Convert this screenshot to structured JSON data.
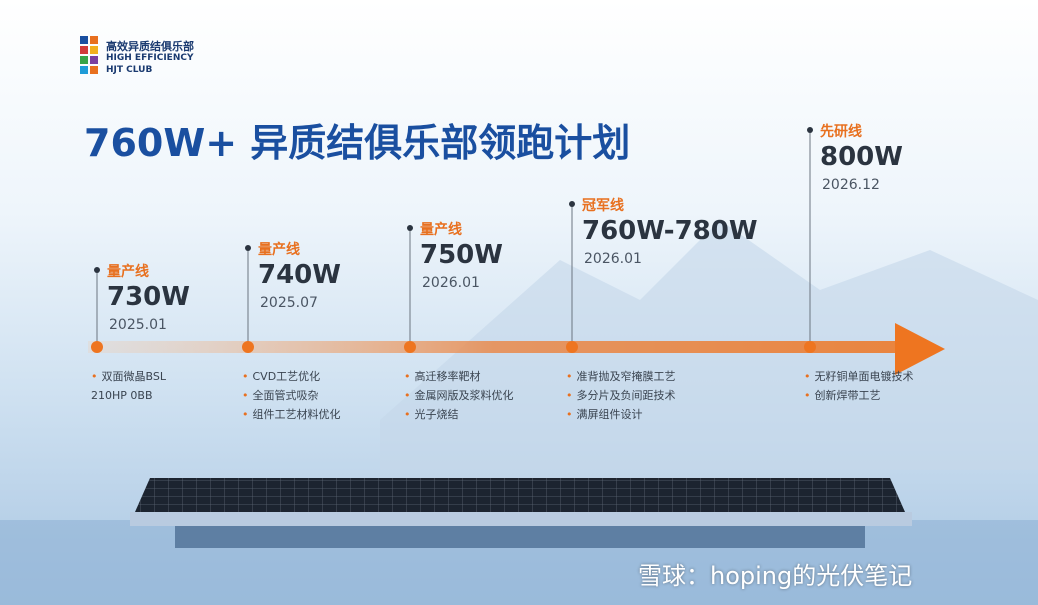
{
  "logo": {
    "name": "高效异质结俱乐部",
    "line1": "HIGH EFFICIENCY",
    "line2": "HJT CLUB"
  },
  "title": "760W+ 异质结俱乐部领跑计划",
  "milestones": [
    {
      "stage": "量产线",
      "power": "730W",
      "date": "2025.01",
      "bullets": [
        "双面微晶BSL 210HP 0BB"
      ]
    },
    {
      "stage": "量产线",
      "power": "740W",
      "date": "2025.07",
      "bullets": [
        "CVD工艺优化",
        "全面管式吸杂",
        "组件工艺材料优化"
      ]
    },
    {
      "stage": "量产线",
      "power": "750W",
      "date": "2026.01",
      "bullets": [
        "高迁移率靶材",
        "金属网版及浆料优化",
        "光子烧结"
      ]
    },
    {
      "stage": "冠军线",
      "power": "760W-780W",
      "date": "2026.01",
      "bullets": [
        "准背抛及窄掩膜工艺",
        "多分片及负间距技术",
        "满屏组件设计"
      ]
    },
    {
      "stage": "先研线",
      "power": "800W",
      "date": "2026.12",
      "bullets": [
        "无籽铜单面电镀技术",
        "创新焊带工艺"
      ]
    }
  ],
  "watermark": "雪球：hoping的光伏笔记"
}
